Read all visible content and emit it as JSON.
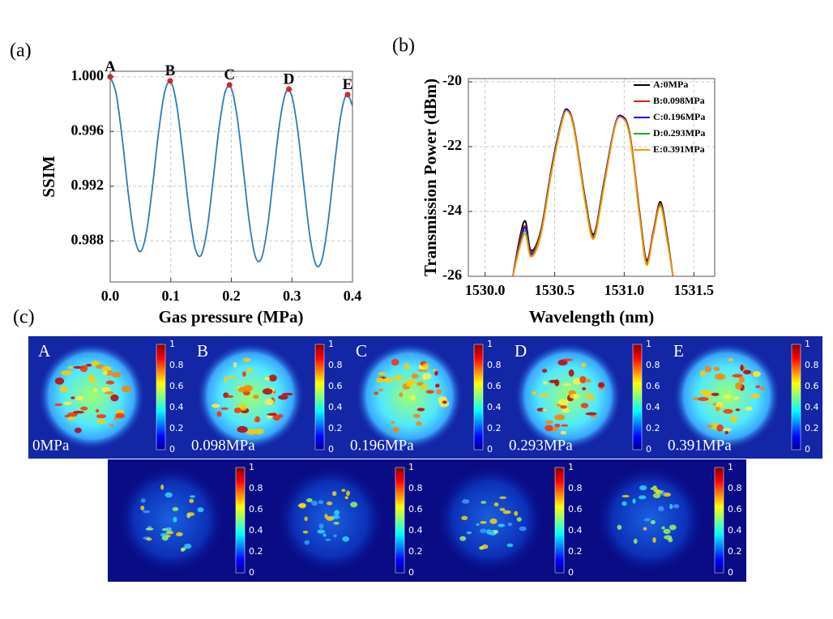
{
  "chart_data": [
    {
      "type": "line",
      "panel_label": "(a)",
      "x_label": "Gas pressure (MPa)",
      "y_label": "SSIM",
      "x": [
        0,
        0.01,
        0.02,
        0.03,
        0.04,
        0.05,
        0.06,
        0.07,
        0.08,
        0.09,
        0.1,
        0.11,
        0.12,
        0.13,
        0.14,
        0.15,
        0.16,
        0.17,
        0.18,
        0.19,
        0.2,
        0.21,
        0.22,
        0.23,
        0.24,
        0.25,
        0.26,
        0.27,
        0.28,
        0.29,
        0.3,
        0.31,
        0.32,
        0.33,
        0.34,
        0.35,
        0.36,
        0.37,
        0.38,
        0.39,
        0.4
      ],
      "series": [
        {
          "color": "#2b7bb9",
          "values": [
            1.0,
            0.99872,
            0.99543,
            0.99142,
            0.98828,
            0.98722,
            0.98867,
            0.99205,
            0.99598,
            0.99889,
            0.99963,
            0.99787,
            0.99429,
            0.99031,
            0.9875,
            0.98695,
            0.98884,
            0.99249,
            0.99636,
            0.99892,
            0.99915,
            0.99693,
            0.99313,
            0.98925,
            0.98681,
            0.98677,
            0.9891,
            0.99296,
            0.99669,
            0.99886,
            0.99857,
            0.99593,
            0.99197,
            0.98825,
            0.98623,
            0.98669,
            0.98947,
            0.99343,
            0.99697,
            0.9987,
            0.99789
          ]
        }
      ],
      "markers": {
        "labels": [
          "A",
          "B",
          "C",
          "D",
          "E"
        ],
        "x": [
          0,
          0.099,
          0.197,
          0.295,
          0.392
        ],
        "values": [
          1.0,
          0.9997,
          0.9994,
          0.9991,
          0.9987
        ],
        "color": "#d62728"
      },
      "xlim": [
        0,
        0.4
      ],
      "xticks": [
        {
          "value": 0,
          "label": "0.0"
        },
        0.1,
        0.2,
        0.3,
        0.4
      ],
      "ylim": [
        0.985,
        1.0004
      ],
      "yticks": [
        0.988,
        0.992,
        0.996,
        {
          "value": 1,
          "label": "1.000"
        }
      ],
      "grid": true
    },
    {
      "type": "line",
      "panel_label": "(b)",
      "x_label": "Wavelength (nm)",
      "y_label": "Transmission Power (dBm)",
      "x": [
        1530.2,
        1530.25,
        1530.29,
        1530.33,
        1530.4,
        1530.48,
        1530.55,
        1530.59,
        1530.64,
        1530.72,
        1530.78,
        1530.85,
        1530.93,
        1530.98,
        1531.04,
        1531.11,
        1531.16,
        1531.21,
        1531.26,
        1531.31,
        1531.35
      ],
      "series": [
        {
          "name": "A:0MPa",
          "color": "#000000",
          "values": [
            -26,
            -24.8,
            -24.3,
            -25.2,
            -24.6,
            -22.6,
            -21.2,
            -20.85,
            -21.4,
            -23.6,
            -24.7,
            -23.2,
            -21.4,
            -21.05,
            -21.6,
            -24.0,
            -25.5,
            -24.6,
            -23.7,
            -24.8,
            -26
          ]
        },
        {
          "name": "B:0.098MPa",
          "color": "#e41a1c",
          "values": [
            -26,
            -24.9,
            -24.45,
            -25.25,
            -24.65,
            -22.6,
            -21.2,
            -20.85,
            -21.4,
            -23.65,
            -24.75,
            -23.2,
            -21.4,
            -21.05,
            -21.6,
            -24.05,
            -25.55,
            -24.6,
            -23.75,
            -24.85,
            -26
          ]
        },
        {
          "name": "C:0.196MPa",
          "color": "#0000ff",
          "values": [
            -26,
            -25.0,
            -24.5,
            -25.3,
            -24.7,
            -22.65,
            -21.2,
            -20.85,
            -21.45,
            -23.7,
            -24.8,
            -23.25,
            -21.4,
            -21.05,
            -21.65,
            -24.1,
            -25.6,
            -24.65,
            -23.8,
            -24.9,
            -26
          ]
        },
        {
          "name": "D:0.293MPa",
          "color": "#2ca02c",
          "values": [
            -26,
            -25.05,
            -24.6,
            -25.35,
            -24.7,
            -22.7,
            -21.25,
            -20.9,
            -21.45,
            -23.7,
            -24.8,
            -23.3,
            -21.45,
            -21.1,
            -21.65,
            -24.1,
            -25.6,
            -24.7,
            -23.8,
            -24.9,
            -26
          ]
        },
        {
          "name": "E:0.391MPa",
          "color": "#ff9900",
          "values": [
            -26,
            -25.1,
            -24.7,
            -25.4,
            -24.75,
            -22.75,
            -21.3,
            -20.9,
            -21.5,
            -23.75,
            -24.85,
            -23.35,
            -21.45,
            -21.1,
            -21.7,
            -24.15,
            -25.65,
            -24.7,
            -23.85,
            -24.95,
            -26
          ]
        }
      ],
      "xlim": [
        1529.88,
        1531.65
      ],
      "xticks": [
        {
          "value": 1530,
          "label": "1530.0"
        },
        1530.5,
        {
          "value": 1531,
          "label": "1531.0"
        },
        1531.5
      ],
      "ylim": [
        -26,
        -19.9
      ],
      "yticks": [
        -26,
        -24,
        -22,
        -20
      ],
      "grid": true,
      "legend": "upper right"
    }
  ],
  "speckle_panel": {
    "panel_label": "(c)",
    "colorbar_ticks": [
      0,
      0.2,
      0.4,
      0.6,
      0.8,
      1
    ],
    "top_row": [
      {
        "label": "A",
        "pressure": "0MPa"
      },
      {
        "label": "B",
        "pressure": "0.098MPa"
      },
      {
        "label": "C",
        "pressure": "0.196MPa"
      },
      {
        "label": "D",
        "pressure": "0.293MPa"
      },
      {
        "label": "E",
        "pressure": "0.391MPa"
      }
    ]
  }
}
